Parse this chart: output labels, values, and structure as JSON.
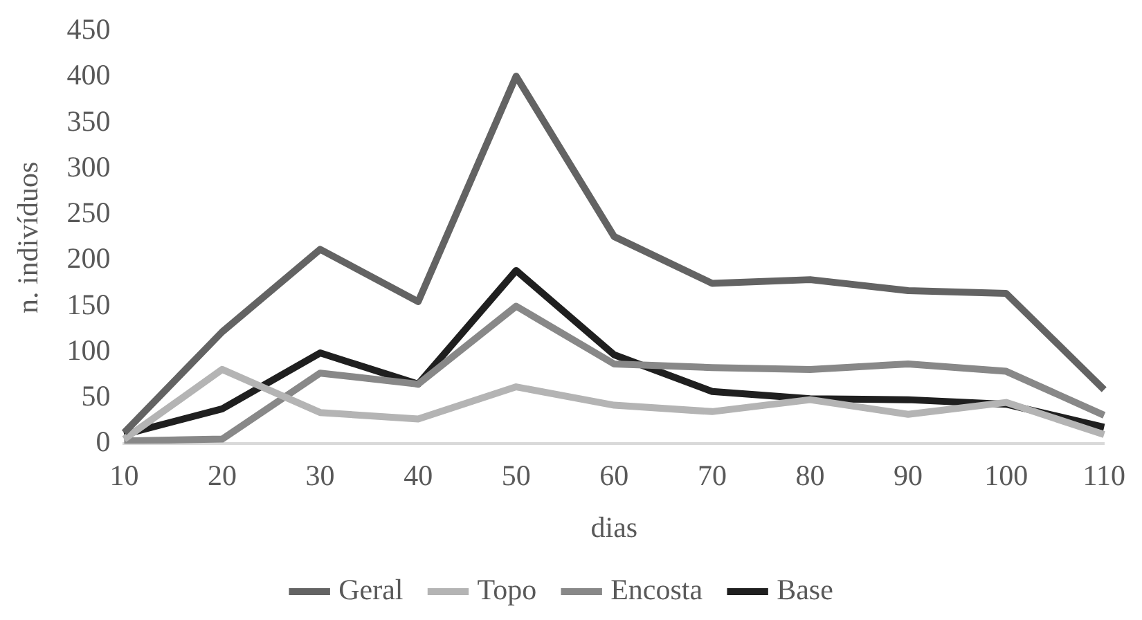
{
  "chart_data": {
    "type": "line",
    "xlabel": "dias",
    "ylabel": "n. indivíduos",
    "categories": [
      "10",
      "20",
      "30",
      "40",
      "50",
      "60",
      "70",
      "80",
      "90",
      "100",
      "110"
    ],
    "series": [
      {
        "name": "Geral",
        "color": "#636363",
        "values": [
          12,
          122,
          212,
          155,
          401,
          226,
          175,
          179,
          167,
          164,
          59
        ]
      },
      {
        "name": "Topo",
        "color": "#b4b4b4",
        "values": [
          5,
          81,
          34,
          27,
          62,
          42,
          35,
          48,
          32,
          45,
          10
        ]
      },
      {
        "name": "Encosta",
        "color": "#888888",
        "values": [
          3,
          5,
          77,
          65,
          150,
          87,
          83,
          81,
          87,
          79,
          31
        ]
      },
      {
        "name": "Base",
        "color": "#1f1f1f",
        "values": [
          10,
          38,
          99,
          65,
          189,
          97,
          57,
          49,
          48,
          43,
          18
        ]
      }
    ],
    "ylim": [
      0,
      450
    ],
    "yticks": [
      0,
      50,
      100,
      150,
      200,
      250,
      300,
      350,
      400,
      450
    ],
    "grid": false,
    "legend": "bottom",
    "marker": "none",
    "line_style": "solid"
  }
}
